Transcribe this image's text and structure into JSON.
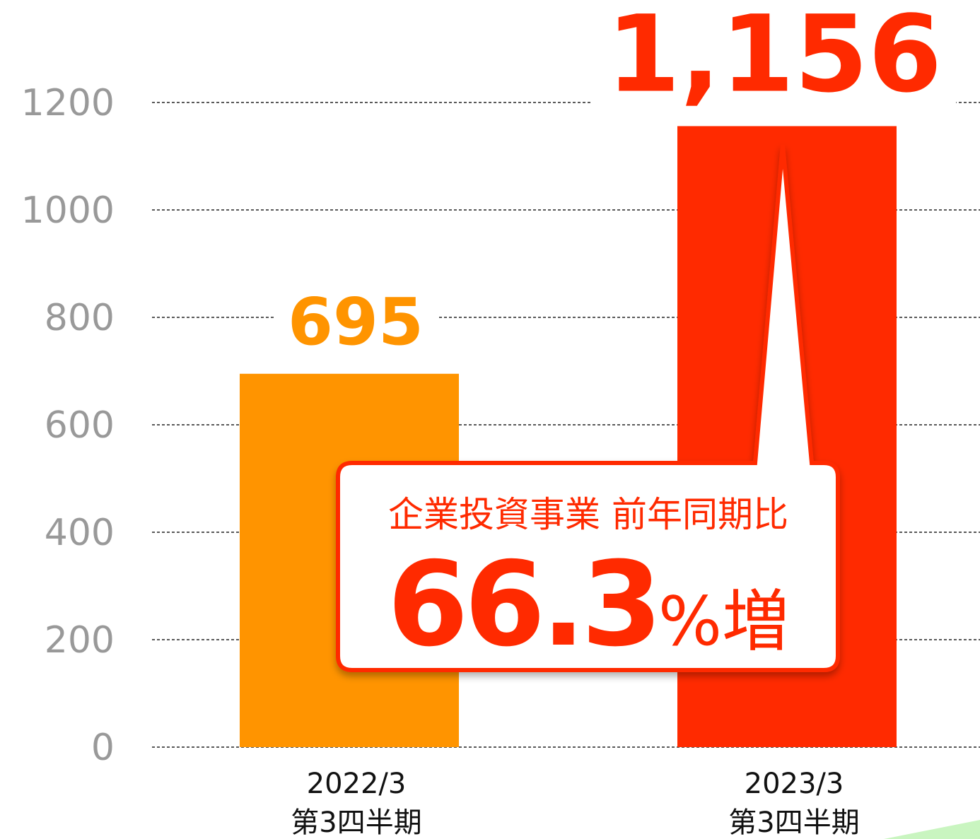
{
  "chart_data": {
    "type": "bar",
    "categories": [
      [
        "2022/3",
        "第3四半期"
      ],
      [
        "2023/3",
        "第3四半期"
      ]
    ],
    "values": [
      695,
      1156
    ],
    "value_labels": [
      "695",
      "1,156"
    ],
    "colors": [
      "#ff9400",
      "#ff2a00"
    ],
    "ylim": [
      0,
      1200
    ],
    "yticks": [
      0,
      200,
      400,
      600,
      800,
      1000,
      1200
    ],
    "grid": true,
    "annotation": {
      "title": "企業投資事業 前年同期比",
      "value": 66.3,
      "suffix": "%増"
    }
  }
}
